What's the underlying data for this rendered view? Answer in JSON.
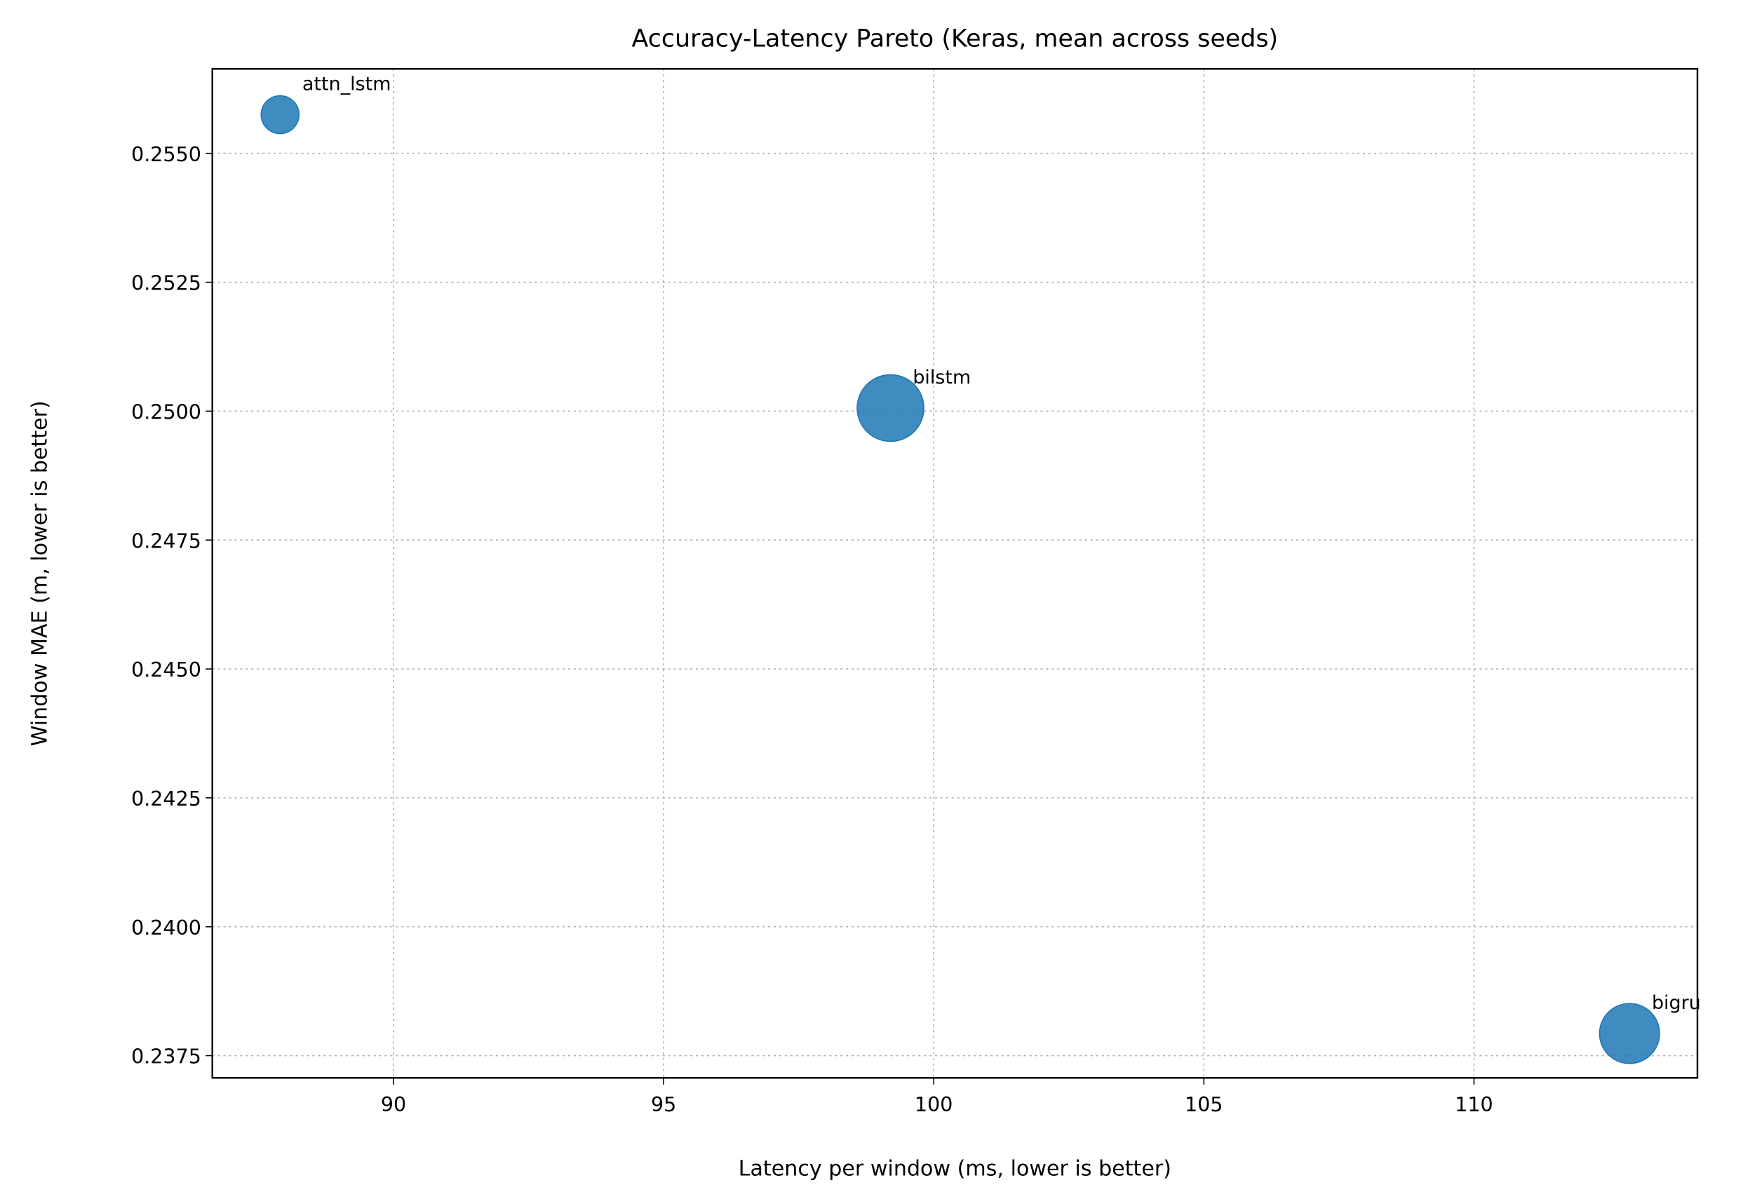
{
  "chart_data": {
    "type": "scatter",
    "title": "Accuracy-Latency Pareto (Keras, mean across seeds)",
    "x_label": "Latency per window (ms, lower is better)",
    "y_label": "Window MAE (m, lower is better)",
    "labels": [
      "attn_lstm",
      "bilstm",
      "bigru"
    ],
    "x": [
      87.9,
      99.2,
      112.88
    ],
    "values": [
      0.25575,
      0.25006,
      0.23793
    ],
    "sizes": [
      290,
      900,
      730
    ],
    "color": "#1f77b4",
    "xlim": [
      86.646,
      114.136
    ],
    "ylim": [
      0.237069,
      0.256638
    ],
    "xticks": [
      90,
      95,
      100,
      105,
      110
    ],
    "yticks": [
      {
        "value": 0.255,
        "label": "0.2550"
      },
      0.2525,
      {
        "value": 0.25,
        "label": "0.2500"
      },
      0.2475,
      {
        "value": 0.245,
        "label": "0.2450"
      },
      0.2425,
      {
        "value": 0.24,
        "label": "0.2400"
      },
      0.2375
    ],
    "grid": true
  }
}
